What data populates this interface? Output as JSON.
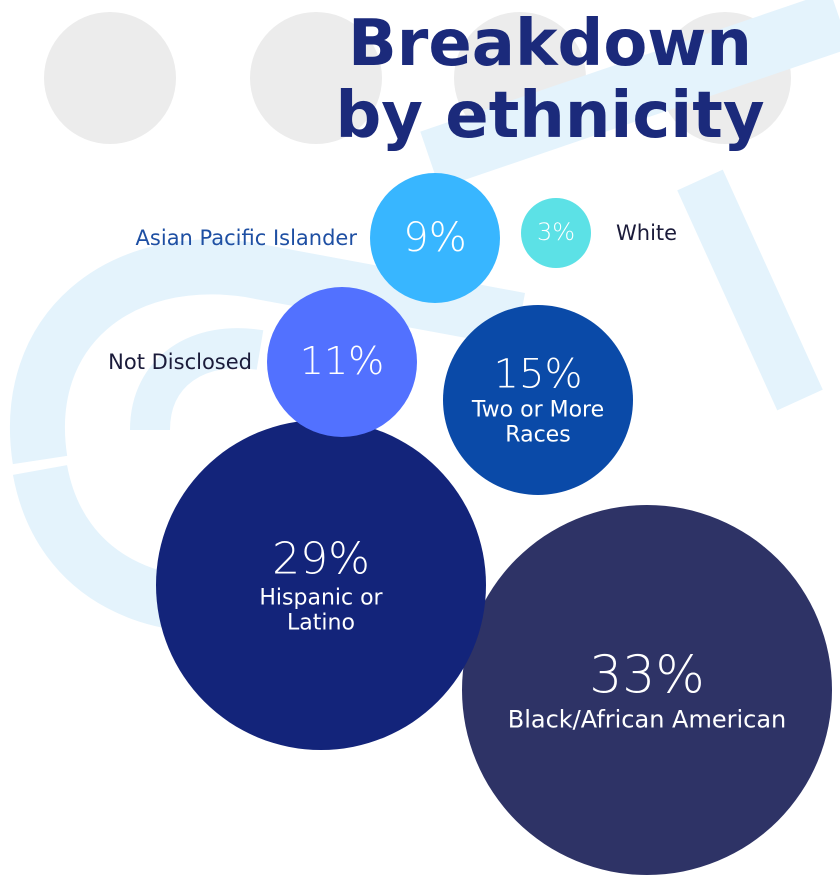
{
  "chart_data": {
    "type": "bubble",
    "title": "Breakdown by ethnicity",
    "categories": [
      "Black/African American",
      "Hispanic or Latino",
      "Two or More Races",
      "Not Disclosed",
      "Asian Pacific Islander",
      "White"
    ],
    "values": [
      33,
      29,
      15,
      11,
      9,
      3
    ],
    "value_labels": [
      "33%",
      "29%",
      "15%",
      "11%",
      "9%",
      "3%"
    ],
    "colors": [
      "#2e3366",
      "#13247a",
      "#0a4aa8",
      "#5271ff",
      "#38b6ff",
      "#5ce1e6"
    ]
  }
}
